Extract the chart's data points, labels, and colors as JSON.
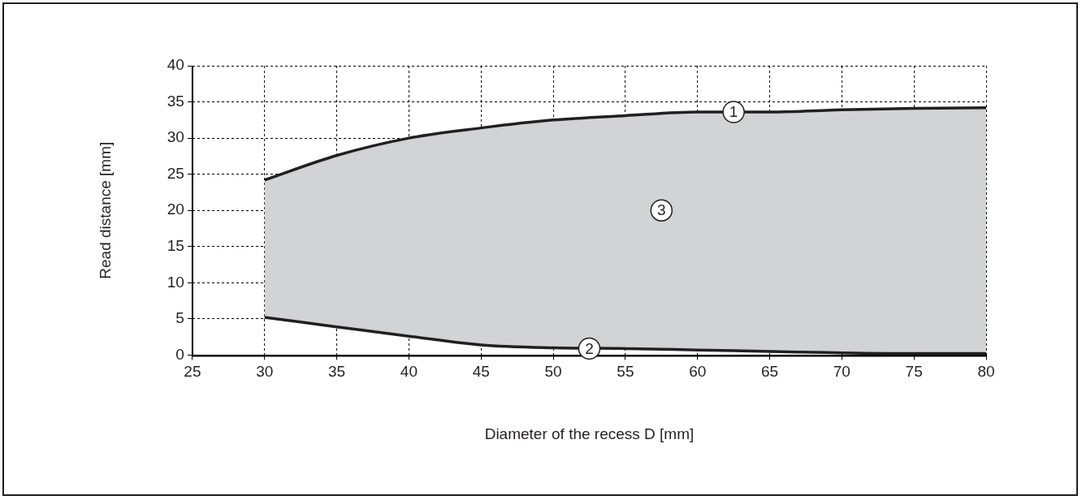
{
  "chart_data": {
    "type": "line",
    "xlabel": "Diameter of the recess D [mm]",
    "ylabel": "Read distance [mm]",
    "x": [
      30,
      35,
      40,
      45,
      50,
      55,
      60,
      65,
      70,
      75,
      80
    ],
    "series": [
      {
        "type": "line",
        "color": "#231f20",
        "values": [
          24.2,
          27.6,
          30.0,
          31.4,
          32.5,
          33.1,
          33.6,
          33.6,
          33.9,
          34.1,
          34.2
        ],
        "lower": [
          5.2,
          3.9,
          2.6,
          1.4,
          1.0,
          0.9,
          0.7,
          0.5,
          0.3,
          0.2,
          0.2
        ],
        "upper": [
          24.2,
          27.6,
          30.0,
          31.4,
          32.5,
          33.1,
          33.6,
          33.6,
          33.9,
          34.1,
          34.2
        ]
      },
      {
        "type": "line",
        "color": "#231f20",
        "values": [
          5.2,
          3.9,
          2.6,
          1.4,
          1.0,
          0.9,
          0.7,
          0.5,
          0.3,
          0.2,
          0.2
        ]
      }
    ],
    "annotations": [
      {
        "text": "1",
        "x": 62.5,
        "y": 33.6
      },
      {
        "text": "2",
        "x": 52.5,
        "y": 0.9
      },
      {
        "text": "3",
        "x": 57.5,
        "y": 20
      }
    ],
    "xlim": [
      25,
      80
    ],
    "xticks": [
      25,
      30,
      35,
      40,
      45,
      50,
      55,
      60,
      65,
      70,
      75,
      80
    ],
    "ylim": [
      0,
      40
    ],
    "yticks": [
      0,
      5,
      10,
      15,
      20,
      25,
      30,
      35,
      40
    ],
    "grid": true,
    "legend": false,
    "marker": "none",
    "line_style": "solid"
  }
}
